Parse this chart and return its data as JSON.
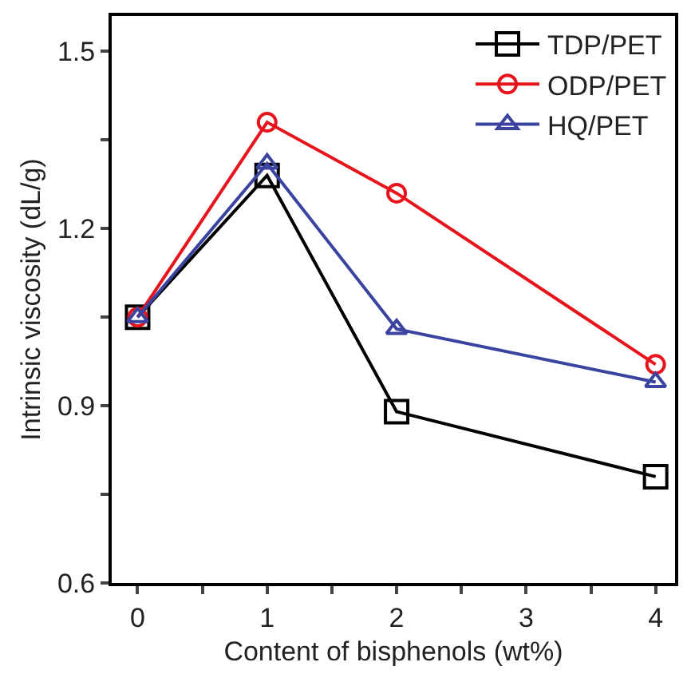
{
  "chart_data": {
    "type": "line",
    "xlabel": "Content of bisphenols (wt%)",
    "ylabel": "Intrinsic viscosity (dL/g)",
    "x": [
      0,
      1,
      2,
      4
    ],
    "series": [
      {
        "name": "TDP/PET",
        "color": "#000000",
        "marker": "square",
        "values": [
          1.05,
          1.29,
          0.89,
          0.78
        ]
      },
      {
        "name": "ODP/PET",
        "color": "#e8141c",
        "marker": "circle",
        "values": [
          1.05,
          1.38,
          1.26,
          0.97
        ]
      },
      {
        "name": "HQ/PET",
        "color": "#3a44a0",
        "marker": "triangle",
        "values": [
          1.05,
          1.31,
          1.03,
          0.94
        ]
      }
    ],
    "xlim": [
      -0.2,
      4.15
    ],
    "ylim": [
      0.6,
      1.56
    ],
    "xticks": [
      0,
      {
        "value": 0.5,
        "label": null
      },
      1,
      {
        "value": 1.5,
        "label": null
      },
      2,
      {
        "value": 2.5,
        "label": null
      },
      3,
      {
        "value": 3.5,
        "label": null
      },
      4
    ],
    "yticks": [
      0.6,
      {
        "value": 0.75,
        "label": null
      },
      0.9,
      {
        "value": 1.05,
        "label": null
      },
      1.2,
      {
        "value": 1.35,
        "label": null
      },
      1.5
    ],
    "legend": "top right",
    "grid": false,
    "line_style": "solid"
  }
}
